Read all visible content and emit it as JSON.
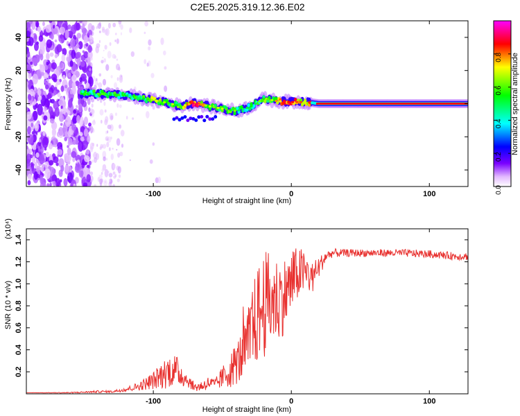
{
  "title": "C2E5.2025.319.12.36.E02",
  "chart_data": [
    {
      "type": "heatmap",
      "xlabel": "Height of straight line (km)",
      "ylabel": "Frequency (Hz)",
      "xlim": [
        -192,
        128
      ],
      "ylim": [
        -50,
        50
      ],
      "xticks": [
        -100,
        0,
        100
      ],
      "yticks": [
        -40,
        -20,
        0,
        20,
        40
      ],
      "colorbar": {
        "label": "Normalized spectral amplitude",
        "range": [
          0,
          1
        ],
        "ticks": [
          0.0,
          0.2,
          0.4,
          0.6,
          0.8
        ],
        "stops": [
          "#ffffff",
          "#e2b8ff",
          "#7a00ff",
          "#0000ff",
          "#00ffff",
          "#00ff00",
          "#ffff00",
          "#ff0000",
          "#ff00ff"
        ]
      },
      "ridge": [
        {
          "x": -150,
          "freq": 6.0,
          "amp": 0.45
        },
        {
          "x": -140,
          "freq": 6.0,
          "amp": 0.5
        },
        {
          "x": -130,
          "freq": 5.5,
          "amp": 0.5
        },
        {
          "x": -120,
          "freq": 5.0,
          "amp": 0.45
        },
        {
          "x": -110,
          "freq": 3.5,
          "amp": 0.45
        },
        {
          "x": -100,
          "freq": 2.0,
          "amp": 0.6
        },
        {
          "x": -90,
          "freq": 0.5,
          "amp": 0.55
        },
        {
          "x": -80,
          "freq": -1.5,
          "amp": 0.55
        },
        {
          "x": -70,
          "freq": 0.5,
          "amp": 0.85
        },
        {
          "x": -60,
          "freq": -1.5,
          "amp": 0.6
        },
        {
          "x": -50,
          "freq": -3.0,
          "amp": 0.55
        },
        {
          "x": -40,
          "freq": -4.5,
          "amp": 0.5
        },
        {
          "x": -30,
          "freq": -2.0,
          "amp": 0.45
        },
        {
          "x": -20,
          "freq": 3.0,
          "amp": 0.55
        },
        {
          "x": -10,
          "freq": 1.5,
          "amp": 0.65
        },
        {
          "x": 0,
          "freq": 1.0,
          "amp": 0.85
        },
        {
          "x": 10,
          "freq": 1.0,
          "amp": 0.65
        },
        {
          "x": 20,
          "freq": 0.0,
          "amp": 0.95
        },
        {
          "x": 50,
          "freq": 0.0,
          "amp": 0.95
        },
        {
          "x": 80,
          "freq": 0.0,
          "amp": 0.95
        },
        {
          "x": 110,
          "freq": 0.0,
          "amp": 0.95
        },
        {
          "x": 128,
          "freq": 0.0,
          "amp": 0.95
        }
      ]
    },
    {
      "type": "line",
      "xlabel": "Height of straight line (km)",
      "ylabel": "SNR (10 * v/v)",
      "yscale_label": "(x10⁴)",
      "xlim": [
        -192,
        128
      ],
      "ylim": [
        0,
        1.5
      ],
      "xticks": [
        -100,
        0,
        100
      ],
      "yticks": [
        0.2,
        0.4,
        0.6,
        0.8,
        1.0,
        1.2,
        1.4
      ],
      "color": "#e8312f",
      "series": [
        {
          "name": "SNR",
          "x": [
            -192,
            -160,
            -140,
            -130,
            -120,
            -110,
            -100,
            -95,
            -90,
            -85,
            -80,
            -75,
            -70,
            -65,
            -60,
            -55,
            -50,
            -45,
            -40,
            -35,
            -30,
            -25,
            -20,
            -15,
            -10,
            -5,
            0,
            5,
            10,
            15,
            20,
            25,
            30,
            40,
            60,
            80,
            100,
            120,
            128
          ],
          "y": [
            0.01,
            0.01,
            0.02,
            0.02,
            0.04,
            0.07,
            0.12,
            0.16,
            0.2,
            0.22,
            0.18,
            0.12,
            0.06,
            0.07,
            0.1,
            0.08,
            0.15,
            0.2,
            0.28,
            0.35,
            0.5,
            0.7,
            0.8,
            0.85,
            0.85,
            0.9,
            1.0,
            1.1,
            1.1,
            1.05,
            1.15,
            1.25,
            1.28,
            1.28,
            1.28,
            1.28,
            1.27,
            1.25,
            1.25
          ],
          "jitter": [
            0.0,
            0.005,
            0.01,
            0.01,
            0.02,
            0.04,
            0.08,
            0.12,
            0.15,
            0.15,
            0.12,
            0.06,
            0.04,
            0.05,
            0.06,
            0.06,
            0.1,
            0.15,
            0.2,
            0.25,
            0.35,
            0.45,
            0.5,
            0.45,
            0.4,
            0.35,
            0.3,
            0.25,
            0.2,
            0.15,
            0.1,
            0.05,
            0.04,
            0.035,
            0.035,
            0.035,
            0.035,
            0.035,
            0.035
          ]
        }
      ]
    }
  ]
}
